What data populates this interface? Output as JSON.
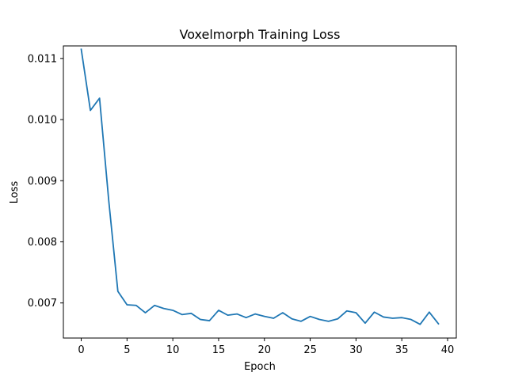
{
  "chart_data": {
    "type": "line",
    "title": "Voxelmorph Training Loss",
    "xlabel": "Epoch",
    "ylabel": "Loss",
    "xlim": [
      -1.95,
      40.95
    ],
    "ylim": [
      0.006426,
      0.011205
    ],
    "xticks": [
      0,
      5,
      10,
      15,
      20,
      25,
      30,
      35,
      40
    ],
    "xtick_labels": [
      "0",
      "5",
      "10",
      "15",
      "20",
      "25",
      "30",
      "35",
      "40"
    ],
    "yticks": [
      0.007,
      0.008,
      0.009,
      0.01,
      0.011
    ],
    "ytick_labels": [
      "0.007",
      "0.008",
      "0.009",
      "0.010",
      "0.011"
    ],
    "grid": false,
    "series": [
      {
        "color": "#1f77b4",
        "x": [
          0,
          1,
          2,
          3,
          4,
          5,
          6,
          7,
          8,
          9,
          10,
          11,
          12,
          13,
          14,
          15,
          16,
          17,
          18,
          19,
          20,
          21,
          22,
          23,
          24,
          25,
          26,
          27,
          28,
          29,
          30,
          31,
          32,
          33,
          34,
          35,
          36,
          37,
          38,
          39
        ],
        "values": [
          0.01115,
          0.01015,
          0.01035,
          0.00868,
          0.00719,
          0.00697,
          0.00696,
          0.00684,
          0.00696,
          0.00691,
          0.00688,
          0.00681,
          0.00683,
          0.00673,
          0.00671,
          0.00688,
          0.0068,
          0.00682,
          0.00676,
          0.00682,
          0.00678,
          0.00675,
          0.00684,
          0.00674,
          0.0067,
          0.00678,
          0.00673,
          0.0067,
          0.00674,
          0.00687,
          0.00684,
          0.00667,
          0.00685,
          0.00677,
          0.00675,
          0.00676,
          0.00673,
          0.00665,
          0.00685,
          0.00666
        ]
      }
    ]
  }
}
